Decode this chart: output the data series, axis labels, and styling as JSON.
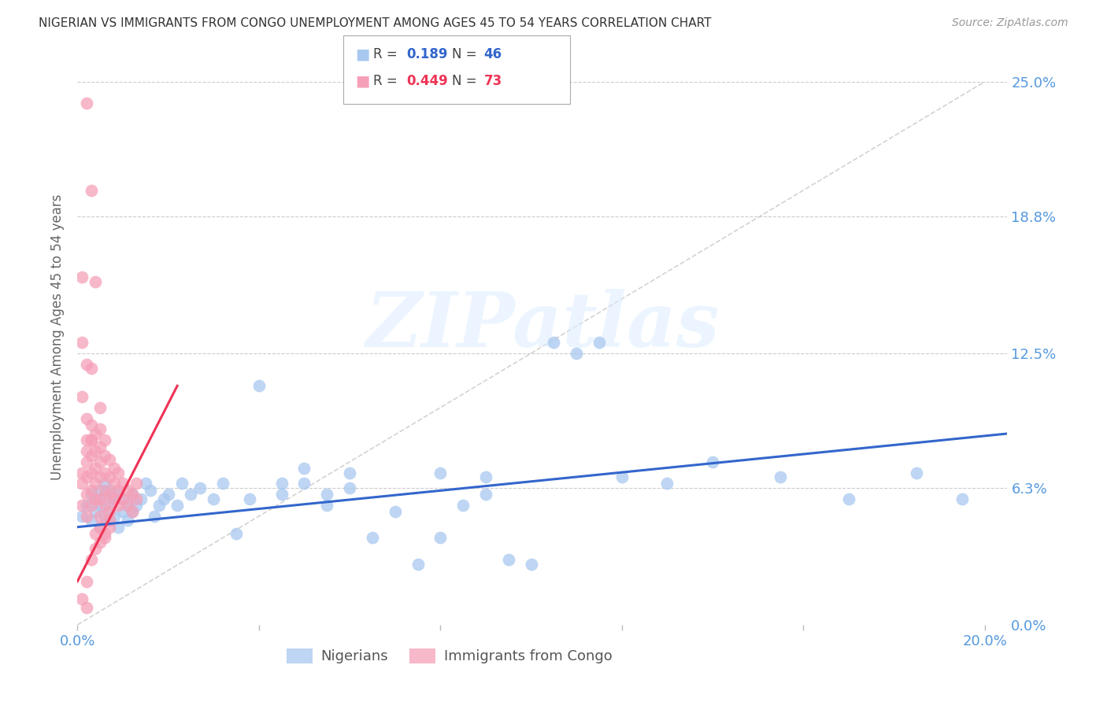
{
  "title": "NIGERIAN VS IMMIGRANTS FROM CONGO UNEMPLOYMENT AMONG AGES 45 TO 54 YEARS CORRELATION CHART",
  "source": "Source: ZipAtlas.com",
  "ylabel": "Unemployment Among Ages 45 to 54 years",
  "xlim": [
    0.0,
    0.205
  ],
  "ylim": [
    0.0,
    0.265
  ],
  "yticks": [
    0.0,
    0.063,
    0.125,
    0.188,
    0.25
  ],
  "ytick_labels": [
    "0.0%",
    "6.3%",
    "12.5%",
    "18.8%",
    "25.0%"
  ],
  "xticks": [
    0.0,
    0.04,
    0.08,
    0.12,
    0.16,
    0.2
  ],
  "xtick_labels": [
    "0.0%",
    "",
    "",
    "",
    "",
    "20.0%"
  ],
  "watermark": "ZIPatlas",
  "background_color": "#ffffff",
  "grid_color": "#cccccc",
  "blue_color": "#a8c8f0",
  "pink_color": "#f5a0b8",
  "trend_blue": "#3366cc",
  "trend_pink": "#ee3355",
  "diag_color": "#c8c8c8",
  "axis_label_color": "#666666",
  "tick_color": "#5599dd",
  "nigerian_points": [
    [
      0.001,
      0.05
    ],
    [
      0.002,
      0.055
    ],
    [
      0.003,
      0.048
    ],
    [
      0.003,
      0.06
    ],
    [
      0.004,
      0.052
    ],
    [
      0.004,
      0.058
    ],
    [
      0.005,
      0.045
    ],
    [
      0.005,
      0.055
    ],
    [
      0.005,
      0.062
    ],
    [
      0.006,
      0.05
    ],
    [
      0.006,
      0.06
    ],
    [
      0.006,
      0.065
    ],
    [
      0.007,
      0.048
    ],
    [
      0.007,
      0.055
    ],
    [
      0.007,
      0.062
    ],
    [
      0.008,
      0.05
    ],
    [
      0.008,
      0.058
    ],
    [
      0.009,
      0.045
    ],
    [
      0.009,
      0.06
    ],
    [
      0.01,
      0.052
    ],
    [
      0.01,
      0.058
    ],
    [
      0.011,
      0.048
    ],
    [
      0.011,
      0.055
    ],
    [
      0.012,
      0.052
    ],
    [
      0.012,
      0.06
    ],
    [
      0.013,
      0.055
    ],
    [
      0.014,
      0.058
    ],
    [
      0.015,
      0.065
    ],
    [
      0.016,
      0.062
    ],
    [
      0.017,
      0.05
    ],
    [
      0.018,
      0.055
    ],
    [
      0.019,
      0.058
    ],
    [
      0.02,
      0.06
    ],
    [
      0.022,
      0.055
    ],
    [
      0.023,
      0.065
    ],
    [
      0.025,
      0.06
    ],
    [
      0.027,
      0.063
    ],
    [
      0.03,
      0.058
    ],
    [
      0.032,
      0.065
    ],
    [
      0.035,
      0.042
    ],
    [
      0.038,
      0.058
    ],
    [
      0.04,
      0.11
    ],
    [
      0.045,
      0.065
    ],
    [
      0.05,
      0.065
    ],
    [
      0.055,
      0.06
    ],
    [
      0.06,
      0.063
    ],
    [
      0.065,
      0.04
    ],
    [
      0.07,
      0.052
    ],
    [
      0.075,
      0.028
    ],
    [
      0.08,
      0.04
    ],
    [
      0.085,
      0.055
    ],
    [
      0.09,
      0.06
    ],
    [
      0.095,
      0.03
    ],
    [
      0.1,
      0.028
    ],
    [
      0.105,
      0.13
    ],
    [
      0.11,
      0.125
    ],
    [
      0.115,
      0.13
    ],
    [
      0.12,
      0.068
    ],
    [
      0.13,
      0.065
    ],
    [
      0.14,
      0.075
    ],
    [
      0.155,
      0.068
    ],
    [
      0.17,
      0.058
    ],
    [
      0.185,
      0.07
    ],
    [
      0.195,
      0.058
    ],
    [
      0.09,
      0.068
    ],
    [
      0.08,
      0.07
    ],
    [
      0.06,
      0.07
    ],
    [
      0.05,
      0.072
    ],
    [
      0.045,
      0.06
    ],
    [
      0.055,
      0.055
    ]
  ],
  "congo_points": [
    [
      0.001,
      0.055
    ],
    [
      0.001,
      0.065
    ],
    [
      0.001,
      0.07
    ],
    [
      0.002,
      0.05
    ],
    [
      0.002,
      0.06
    ],
    [
      0.002,
      0.068
    ],
    [
      0.002,
      0.075
    ],
    [
      0.002,
      0.08
    ],
    [
      0.002,
      0.085
    ],
    [
      0.003,
      0.055
    ],
    [
      0.003,
      0.062
    ],
    [
      0.003,
      0.07
    ],
    [
      0.003,
      0.078
    ],
    [
      0.003,
      0.085
    ],
    [
      0.003,
      0.092
    ],
    [
      0.004,
      0.058
    ],
    [
      0.004,
      0.065
    ],
    [
      0.004,
      0.072
    ],
    [
      0.004,
      0.08
    ],
    [
      0.004,
      0.088
    ],
    [
      0.005,
      0.05
    ],
    [
      0.005,
      0.058
    ],
    [
      0.005,
      0.068
    ],
    [
      0.005,
      0.075
    ],
    [
      0.005,
      0.082
    ],
    [
      0.005,
      0.09
    ],
    [
      0.006,
      0.055
    ],
    [
      0.006,
      0.062
    ],
    [
      0.006,
      0.07
    ],
    [
      0.006,
      0.078
    ],
    [
      0.006,
      0.085
    ],
    [
      0.007,
      0.052
    ],
    [
      0.007,
      0.06
    ],
    [
      0.007,
      0.068
    ],
    [
      0.007,
      0.076
    ],
    [
      0.008,
      0.058
    ],
    [
      0.008,
      0.065
    ],
    [
      0.008,
      0.072
    ],
    [
      0.009,
      0.055
    ],
    [
      0.009,
      0.062
    ],
    [
      0.009,
      0.07
    ],
    [
      0.01,
      0.058
    ],
    [
      0.01,
      0.065
    ],
    [
      0.011,
      0.055
    ],
    [
      0.011,
      0.062
    ],
    [
      0.012,
      0.052
    ],
    [
      0.012,
      0.06
    ],
    [
      0.013,
      0.058
    ],
    [
      0.013,
      0.065
    ],
    [
      0.002,
      0.008
    ],
    [
      0.003,
      0.03
    ],
    [
      0.004,
      0.035
    ],
    [
      0.004,
      0.042
    ],
    [
      0.005,
      0.038
    ],
    [
      0.006,
      0.042
    ],
    [
      0.007,
      0.048
    ],
    [
      0.001,
      0.16
    ],
    [
      0.003,
      0.118
    ],
    [
      0.005,
      0.1
    ],
    [
      0.002,
      0.24
    ],
    [
      0.003,
      0.2
    ],
    [
      0.004,
      0.158
    ],
    [
      0.001,
      0.105
    ],
    [
      0.002,
      0.095
    ],
    [
      0.003,
      0.085
    ],
    [
      0.001,
      0.13
    ],
    [
      0.002,
      0.12
    ],
    [
      0.005,
      0.045
    ],
    [
      0.006,
      0.04
    ],
    [
      0.007,
      0.045
    ],
    [
      0.001,
      0.012
    ],
    [
      0.002,
      0.02
    ]
  ]
}
